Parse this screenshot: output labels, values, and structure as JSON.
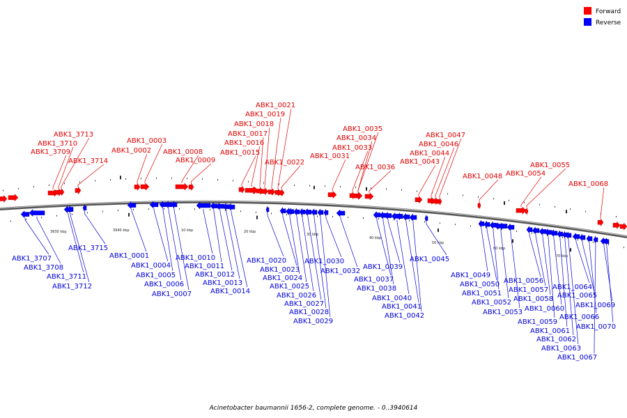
{
  "legend": {
    "forward_label": "Forward",
    "reverse_label": "Reverse",
    "forward_color": "#ff0000",
    "reverse_color": "#0000ff"
  },
  "caption": "Acinetobacter baumannii 1656-2, complete genome. - 0..3940614",
  "scale_labels": [
    "3930 kbp",
    "3940 kbp",
    "10 kbp",
    "20 kbp",
    "30 kbp",
    "40 kbp",
    "50 kbp",
    "60 kbp",
    "70 kbp"
  ],
  "forward_genes": [
    "ABK1_3709",
    "ABK1_3710",
    "ABK1_3713",
    "ABK1_3714",
    "ABK1_0002",
    "ABK1_0003",
    "ABK1_0008",
    "ABK1_0009",
    "ABK1_0015",
    "ABK1_0016",
    "ABK1_0017",
    "ABK1_0018",
    "ABK1_0019",
    "ABK1_0021",
    "ABK1_0022",
    "ABK1_0031",
    "ABK1_0033",
    "ABK1_0034",
    "ABK1_0035",
    "ABK1_0036",
    "ABK1_0043",
    "ABK1_0044",
    "ABK1_0046",
    "ABK1_0047",
    "ABK1_0048",
    "ABK1_0054",
    "ABK1_0055",
    "ABK1_0068"
  ],
  "reverse_genes": [
    "ABK1_3707",
    "ABK1_3708",
    "ABK1_3711",
    "ABK1_3712",
    "ABK1_3715",
    "ABK1_0001",
    "ABK1_0004",
    "ABK1_0005",
    "ABK1_0006",
    "ABK1_0007",
    "ABK1_0010",
    "ABK1_0011",
    "ABK1_0012",
    "ABK1_0013",
    "ABK1_0014",
    "ABK1_0020",
    "ABK1_0023",
    "ABK1_0024",
    "ABK1_0025",
    "ABK1_0026",
    "ABK1_0027",
    "ABK1_0028",
    "ABK1_0029",
    "ABK1_0030",
    "ABK1_0032",
    "ABK1_0037",
    "ABK1_0038",
    "ABK1_0039",
    "ABK1_0040",
    "ABK1_0041",
    "ABK1_0042",
    "ABK1_0045",
    "ABK1_0049",
    "ABK1_0050",
    "ABK1_0051",
    "ABK1_0052",
    "ABK1_0053",
    "ABK1_0056",
    "ABK1_0057",
    "ABK1_0058",
    "ABK1_0059",
    "ABK1_0060",
    "ABK1_0061",
    "ABK1_0062",
    "ABK1_0063",
    "ABK1_0064",
    "ABK1_0065",
    "ABK1_0066",
    "ABK1_0067",
    "ABK1_0069",
    "ABK1_0070"
  ]
}
